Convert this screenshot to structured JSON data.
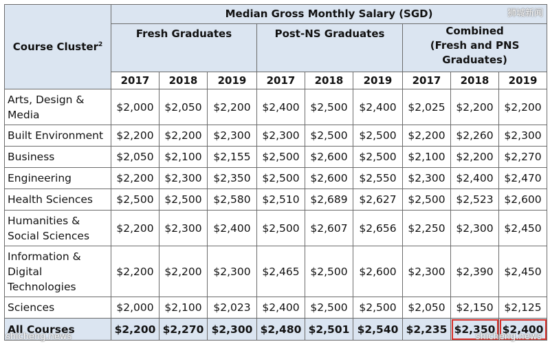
{
  "table": {
    "title": "Median Gross Monthly Salary (SGD)",
    "cluster_header": "Course Cluster",
    "cluster_header_sup": "2",
    "groups": [
      {
        "label": "Fresh Graduates"
      },
      {
        "label": "Post-NS Graduates"
      },
      {
        "label_lines": [
          "Combined",
          "(Fresh and PNS",
          "Graduates)"
        ]
      }
    ],
    "years": [
      "2017",
      "2018",
      "2019",
      "2017",
      "2018",
      "2019",
      "2017",
      "2018",
      "2019"
    ],
    "rows": [
      {
        "label_lines": [
          "Arts, Design &",
          "Media"
        ],
        "values": [
          "$2,000",
          "$2,050",
          "$2,200",
          "$2,400",
          "$2,500",
          "$2,400",
          "$2,025",
          "$2,200",
          "$2,200"
        ]
      },
      {
        "label_lines": [
          "Built Environment"
        ],
        "values": [
          "$2,200",
          "$2,200",
          "$2,300",
          "$2,300",
          "$2,500",
          "$2,500",
          "$2,200",
          "$2,260",
          "$2,300"
        ]
      },
      {
        "label_lines": [
          "Business"
        ],
        "values": [
          "$2,050",
          "$2,100",
          "$2,155",
          "$2,500",
          "$2,600",
          "$2,500",
          "$2,100",
          "$2,200",
          "$2,270"
        ]
      },
      {
        "label_lines": [
          "Engineering"
        ],
        "values": [
          "$2,200",
          "$2,300",
          "$2,350",
          "$2,500",
          "$2,600",
          "$2,550",
          "$2,300",
          "$2,400",
          "$2,470"
        ]
      },
      {
        "label_lines": [
          "Health Sciences"
        ],
        "values": [
          "$2,500",
          "$2,500",
          "$2,580",
          "$2,510",
          "$2,689",
          "$2,627",
          "$2,500",
          "$2,523",
          "$2,600"
        ]
      },
      {
        "label_lines": [
          "Humanities &",
          "Social Sciences"
        ],
        "values": [
          "$2,200",
          "$2,300",
          "$2,400",
          "$2,500",
          "$2,607",
          "$2,656",
          "$2,250",
          "$2,300",
          "$2,450"
        ]
      },
      {
        "label_lines": [
          "Information &",
          "Digital",
          "Technologies"
        ],
        "values": [
          "$2,200",
          "$2,200",
          "$2,300",
          "$2,465",
          "$2,500",
          "$2,600",
          "$2,300",
          "$2,390",
          "$2,450"
        ]
      },
      {
        "label_lines": [
          "Sciences"
        ],
        "values": [
          "$2,000",
          "$2,100",
          "$2,023",
          "$2,400",
          "$2,500",
          "$2,500",
          "$2,050",
          "$2,150",
          "$2,125"
        ]
      }
    ],
    "total": {
      "label": "All Courses",
      "values": [
        "$2,200",
        "$2,270",
        "$2,300",
        "$2,480",
        "$2,501",
        "$2,540",
        "$2,235",
        "$2,350",
        "$2,400"
      ]
    },
    "highlight_color": "#d9312a",
    "header_fill": "#dbe5f1"
  },
  "watermarks": {
    "top_right": "狮城新闻",
    "bottom_left": "shicheng.news",
    "bottom_right": "shicheng.news"
  }
}
